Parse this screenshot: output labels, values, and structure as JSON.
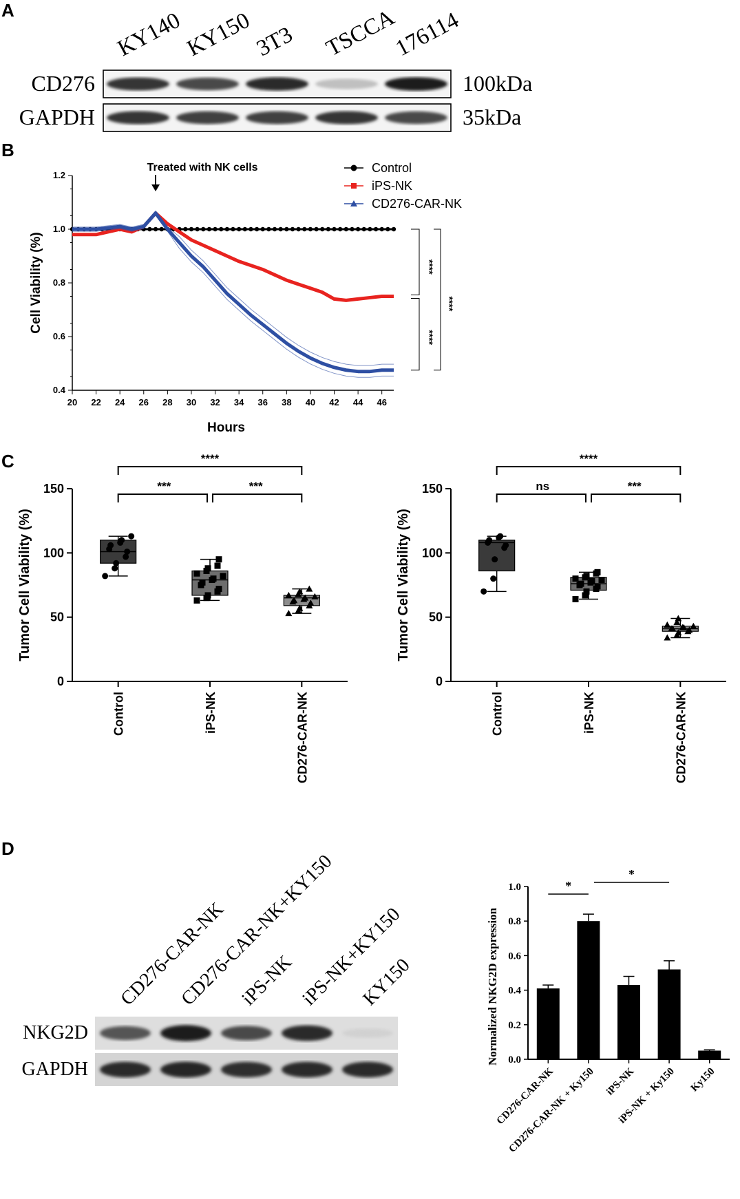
{
  "panels": {
    "a": "A",
    "b": "B",
    "c": "C",
    "d": "D"
  },
  "panelA": {
    "lanes": [
      "KY140",
      "KY150",
      "3T3",
      "TSCCA",
      "176114"
    ],
    "rows": [
      {
        "label": "CD276",
        "mw": "100kDa",
        "intensity": [
          0.85,
          0.75,
          0.9,
          0.2,
          0.95
        ]
      },
      {
        "label": "GAPDH",
        "mw": "35kDa",
        "intensity": [
          0.85,
          0.8,
          0.8,
          0.85,
          0.75
        ]
      }
    ]
  },
  "chart_data": [
    {
      "type": "line",
      "title": "",
      "xlabel": "Hours",
      "ylabel": "Cell Viability (%)",
      "xlim": [
        20,
        47
      ],
      "ylim": [
        0.4,
        1.2
      ],
      "xticks": [
        "20",
        "22",
        "24",
        "26",
        "28",
        "30",
        "32",
        "34",
        "36",
        "38",
        "40",
        "42",
        "44",
        "46"
      ],
      "yticks": [
        "0.4",
        "0.6",
        "0.8",
        "1.0",
        "1.2"
      ],
      "annotation": "Treated with NK cells",
      "annotation_x": 27,
      "significance": [
        "****",
        "****",
        "****"
      ],
      "series": [
        {
          "name": "Control",
          "color": "#000000",
          "x": [
            20,
            22,
            24,
            26,
            28,
            30,
            32,
            34,
            36,
            38,
            40,
            42,
            44,
            47
          ],
          "y": [
            1.0,
            1.0,
            1.0,
            1.0,
            1.0,
            1.0,
            1.0,
            1.0,
            1.0,
            1.0,
            1.0,
            1.0,
            1.0,
            1.0
          ]
        },
        {
          "name": "iPS-NK",
          "color": "#e8231f",
          "x": [
            20,
            22,
            24,
            25,
            26,
            27,
            28,
            29,
            30,
            31,
            32,
            33,
            34,
            35,
            36,
            37,
            38,
            39,
            40,
            41,
            42,
            43,
            44,
            45,
            46,
            47
          ],
          "y": [
            0.98,
            0.98,
            1.0,
            0.99,
            1.01,
            1.06,
            1.02,
            0.99,
            0.96,
            0.94,
            0.92,
            0.9,
            0.88,
            0.865,
            0.85,
            0.83,
            0.81,
            0.795,
            0.78,
            0.765,
            0.74,
            0.735,
            0.74,
            0.745,
            0.75,
            0.75
          ]
        },
        {
          "name": "CD276-CAR-NK",
          "color": "#2e4fa3",
          "x": [
            20,
            22,
            24,
            25,
            26,
            27,
            28,
            29,
            30,
            31,
            32,
            33,
            34,
            35,
            36,
            37,
            38,
            39,
            40,
            41,
            42,
            43,
            44,
            45,
            46,
            47
          ],
          "y": [
            1.0,
            1.0,
            1.01,
            1.0,
            1.01,
            1.06,
            1.0,
            0.95,
            0.9,
            0.86,
            0.81,
            0.76,
            0.72,
            0.68,
            0.645,
            0.61,
            0.575,
            0.545,
            0.52,
            0.5,
            0.485,
            0.475,
            0.47,
            0.47,
            0.475,
            0.475
          ]
        }
      ]
    },
    {
      "type": "box",
      "title": "",
      "xlabel": "",
      "ylabel": "Tumor Cell Viability (%)",
      "ylim": [
        0,
        150
      ],
      "yticks": [
        "0",
        "50",
        "100",
        "150"
      ],
      "categories": [
        "Control",
        "iPS-NK",
        "CD276-CAR-NK"
      ],
      "boxes": [
        {
          "min": 82,
          "q1": 92,
          "median": 101,
          "q3": 110,
          "max": 113,
          "fill": "#3a3a3a",
          "marker": "circle",
          "points": [
            82,
            88,
            92,
            97,
            101,
            103,
            106,
            108,
            110,
            113
          ]
        },
        {
          "min": 63,
          "q1": 67,
          "median": 79,
          "q3": 86,
          "max": 95,
          "fill": "#6e6e6e",
          "marker": "square",
          "points": [
            63,
            65,
            67,
            70,
            72,
            75,
            77,
            79,
            80,
            82,
            84,
            86,
            88,
            90,
            95
          ]
        },
        {
          "min": 53,
          "q1": 59,
          "median": 65,
          "q3": 67,
          "max": 72,
          "fill": "#8c8c8c",
          "marker": "triangle",
          "points": [
            53,
            55,
            57,
            59,
            61,
            62,
            63,
            64,
            65,
            66,
            67,
            68,
            70,
            72
          ]
        }
      ],
      "significance": [
        {
          "from": 0,
          "to": 1,
          "label": "***"
        },
        {
          "from": 1,
          "to": 2,
          "label": "***"
        },
        {
          "from": 0,
          "to": 2,
          "label": "****"
        }
      ]
    },
    {
      "type": "box",
      "title": "",
      "xlabel": "",
      "ylabel": "Tumor Cell Viability (%)",
      "ylim": [
        0,
        150
      ],
      "yticks": [
        "0",
        "50",
        "100",
        "150"
      ],
      "categories": [
        "Control",
        "iPS-NK",
        "CD276-CAR-NK"
      ],
      "boxes": [
        {
          "min": 70,
          "q1": 86,
          "median": 108,
          "q3": 110,
          "max": 113,
          "fill": "#3a3a3a",
          "marker": "circle",
          "points": [
            70,
            80,
            95,
            104,
            106,
            108,
            110,
            112,
            113
          ]
        },
        {
          "min": 64,
          "q1": 71,
          "median": 76,
          "q3": 81,
          "max": 85,
          "fill": "#6e6e6e",
          "marker": "square",
          "points": [
            64,
            67,
            70,
            72,
            74,
            75,
            76,
            77,
            78,
            79,
            80,
            81,
            82,
            84,
            85
          ]
        },
        {
          "min": 34,
          "q1": 39,
          "median": 41,
          "q3": 43,
          "max": 49,
          "fill": "#8c8c8c",
          "marker": "triangle",
          "points": [
            34,
            36,
            38,
            39,
            40,
            41,
            41,
            42,
            42,
            43,
            44,
            46,
            49
          ]
        }
      ],
      "significance": [
        {
          "from": 0,
          "to": 1,
          "label": "ns"
        },
        {
          "from": 1,
          "to": 2,
          "label": "***"
        },
        {
          "from": 0,
          "to": 2,
          "label": "****"
        }
      ]
    },
    {
      "type": "bar",
      "title": "",
      "xlabel": "",
      "ylabel": "Normalized NKG2D expression",
      "ylim": [
        0,
        1.0
      ],
      "yticks": [
        "0.0",
        "0.2",
        "0.4",
        "0.6",
        "0.8",
        "1.0"
      ],
      "categories": [
        "CD276-CAR-NK",
        "CD276-CAR-NK + Ky150",
        "iPS-NK",
        "iPS-NK + Ky150",
        "Ky150"
      ],
      "values": [
        0.41,
        0.8,
        0.43,
        0.52,
        0.05
      ],
      "errors": [
        0.02,
        0.04,
        0.05,
        0.05,
        0.005
      ],
      "significance": [
        {
          "from": 0,
          "to": 1,
          "label": "*"
        },
        {
          "from": 1,
          "to": 3,
          "label": "*"
        }
      ]
    }
  ],
  "panelD_blot": {
    "lanes": [
      "CD276-CAR-NK",
      "CD276-CAR-NK+KY150",
      "iPS-NK",
      "iPS-NK+KY150",
      "KY150"
    ],
    "rows": [
      {
        "label": "NKG2D",
        "intensity": [
          0.7,
          0.95,
          0.75,
          0.9,
          0.12
        ]
      },
      {
        "label": "GAPDH",
        "intensity": [
          0.9,
          0.92,
          0.88,
          0.9,
          0.9
        ]
      }
    ]
  }
}
